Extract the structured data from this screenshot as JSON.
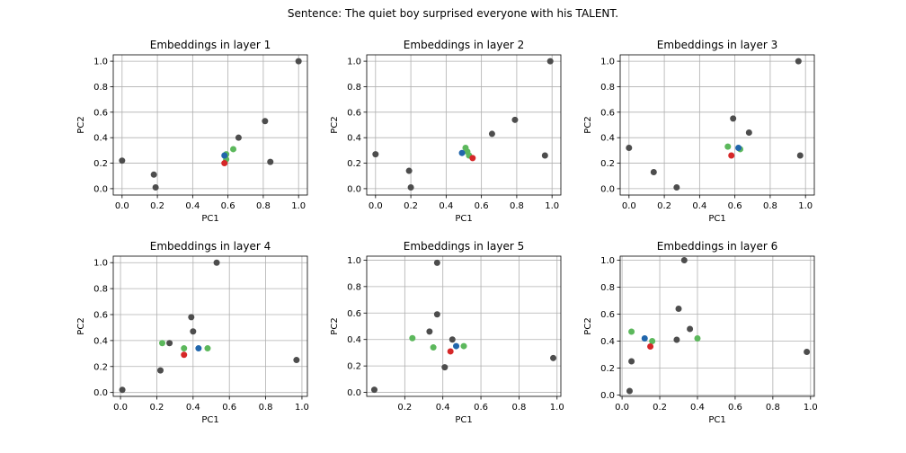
{
  "suptitle": "Sentence: The quiet boy surprised everyone with his TALENT.",
  "colors": {
    "other": "#4d4d4d",
    "green": "#5cb85c",
    "blue": "#2166ac",
    "red": "#d62728",
    "grid": "#b0b0b0"
  },
  "chart_data": [
    {
      "type": "scatter",
      "title": "Embeddings in layer 1",
      "xlabel": "PC1",
      "ylabel": "PC2",
      "xlim": [
        -0.05,
        1.05
      ],
      "ylim": [
        -0.05,
        1.05
      ],
      "xticks": [
        0.0,
        0.2,
        0.4,
        0.6,
        0.8,
        1.0
      ],
      "yticks": [
        0.0,
        0.2,
        0.4,
        0.6,
        0.8,
        1.0
      ],
      "xtick_labels": [
        "0.0",
        "0.2",
        "0.4",
        "0.6",
        "0.8",
        "1.0"
      ],
      "ytick_labels": [
        "0.0",
        "0.2",
        "0.4",
        "0.6",
        "0.8",
        "1.0"
      ],
      "grid": true,
      "points": [
        {
          "x": 0.0,
          "y": 0.22,
          "c": "other"
        },
        {
          "x": 0.18,
          "y": 0.11,
          "c": "other"
        },
        {
          "x": 0.19,
          "y": 0.01,
          "c": "other"
        },
        {
          "x": 0.66,
          "y": 0.4,
          "c": "other"
        },
        {
          "x": 0.81,
          "y": 0.53,
          "c": "other"
        },
        {
          "x": 0.84,
          "y": 0.21,
          "c": "other"
        },
        {
          "x": 1.0,
          "y": 1.0,
          "c": "other"
        },
        {
          "x": 0.59,
          "y": 0.23,
          "c": "green"
        },
        {
          "x": 0.59,
          "y": 0.27,
          "c": "green"
        },
        {
          "x": 0.63,
          "y": 0.31,
          "c": "green"
        },
        {
          "x": 0.58,
          "y": 0.26,
          "c": "blue"
        },
        {
          "x": 0.58,
          "y": 0.2,
          "c": "red"
        }
      ]
    },
    {
      "type": "scatter",
      "title": "Embeddings in layer 2",
      "xlabel": "PC1",
      "ylabel": "PC2",
      "xlim": [
        -0.05,
        1.05
      ],
      "ylim": [
        -0.05,
        1.05
      ],
      "xticks": [
        0.0,
        0.2,
        0.4,
        0.6,
        0.8,
        1.0
      ],
      "yticks": [
        0.0,
        0.2,
        0.4,
        0.6,
        0.8,
        1.0
      ],
      "xtick_labels": [
        "0.0",
        "0.2",
        "0.4",
        "0.6",
        "0.8",
        "1.0"
      ],
      "ytick_labels": [
        "0.0",
        "0.2",
        "0.4",
        "0.6",
        "0.8",
        "1.0"
      ],
      "grid": true,
      "points": [
        {
          "x": 0.0,
          "y": 0.27,
          "c": "other"
        },
        {
          "x": 0.19,
          "y": 0.14,
          "c": "other"
        },
        {
          "x": 0.2,
          "y": 0.01,
          "c": "other"
        },
        {
          "x": 0.66,
          "y": 0.43,
          "c": "other"
        },
        {
          "x": 0.79,
          "y": 0.54,
          "c": "other"
        },
        {
          "x": 0.96,
          "y": 0.26,
          "c": "other"
        },
        {
          "x": 0.99,
          "y": 1.0,
          "c": "other"
        },
        {
          "x": 0.51,
          "y": 0.32,
          "c": "green"
        },
        {
          "x": 0.52,
          "y": 0.29,
          "c": "green"
        },
        {
          "x": 0.53,
          "y": 0.26,
          "c": "green"
        },
        {
          "x": 0.49,
          "y": 0.28,
          "c": "blue"
        },
        {
          "x": 0.55,
          "y": 0.24,
          "c": "red"
        }
      ]
    },
    {
      "type": "scatter",
      "title": "Embeddings in layer 3",
      "xlabel": "PC1",
      "ylabel": "PC2",
      "xlim": [
        -0.05,
        1.05
      ],
      "ylim": [
        -0.05,
        1.05
      ],
      "xticks": [
        0.0,
        0.2,
        0.4,
        0.6,
        0.8,
        1.0
      ],
      "yticks": [
        0.0,
        0.2,
        0.4,
        0.6,
        0.8,
        1.0
      ],
      "xtick_labels": [
        "0.0",
        "0.2",
        "0.4",
        "0.6",
        "0.8",
        "1.0"
      ],
      "ytick_labels": [
        "0.0",
        "0.2",
        "0.4",
        "0.6",
        "0.8",
        "1.0"
      ],
      "grid": true,
      "points": [
        {
          "x": 0.0,
          "y": 0.32,
          "c": "other"
        },
        {
          "x": 0.14,
          "y": 0.13,
          "c": "other"
        },
        {
          "x": 0.27,
          "y": 0.01,
          "c": "other"
        },
        {
          "x": 0.59,
          "y": 0.55,
          "c": "other"
        },
        {
          "x": 0.68,
          "y": 0.44,
          "c": "other"
        },
        {
          "x": 0.96,
          "y": 1.0,
          "c": "other"
        },
        {
          "x": 0.97,
          "y": 0.26,
          "c": "other"
        },
        {
          "x": 0.56,
          "y": 0.33,
          "c": "green"
        },
        {
          "x": 0.63,
          "y": 0.31,
          "c": "green"
        },
        {
          "x": 0.62,
          "y": 0.32,
          "c": "blue"
        },
        {
          "x": 0.58,
          "y": 0.26,
          "c": "red"
        }
      ]
    },
    {
      "type": "scatter",
      "title": "Embeddings in layer 4",
      "xlabel": "PC1",
      "ylabel": "PC2",
      "xlim": [
        -0.04,
        1.03
      ],
      "ylim": [
        -0.03,
        1.05
      ],
      "xticks": [
        0.0,
        0.2,
        0.4,
        0.6,
        0.8,
        1.0
      ],
      "yticks": [
        0.0,
        0.2,
        0.4,
        0.6,
        0.8,
        1.0
      ],
      "xtick_labels": [
        "0.0",
        "0.2",
        "0.4",
        "0.6",
        "0.8",
        "1.0"
      ],
      "ytick_labels": [
        "0.0",
        "0.2",
        "0.4",
        "0.6",
        "0.8",
        "1.0"
      ],
      "grid": true,
      "points": [
        {
          "x": 0.01,
          "y": 0.02,
          "c": "other"
        },
        {
          "x": 0.22,
          "y": 0.17,
          "c": "other"
        },
        {
          "x": 0.27,
          "y": 0.38,
          "c": "other"
        },
        {
          "x": 0.39,
          "y": 0.58,
          "c": "other"
        },
        {
          "x": 0.4,
          "y": 0.47,
          "c": "other"
        },
        {
          "x": 0.53,
          "y": 1.0,
          "c": "other"
        },
        {
          "x": 0.97,
          "y": 0.25,
          "c": "other"
        },
        {
          "x": 0.23,
          "y": 0.38,
          "c": "green"
        },
        {
          "x": 0.35,
          "y": 0.34,
          "c": "green"
        },
        {
          "x": 0.48,
          "y": 0.34,
          "c": "green"
        },
        {
          "x": 0.43,
          "y": 0.34,
          "c": "blue"
        },
        {
          "x": 0.35,
          "y": 0.29,
          "c": "red"
        }
      ]
    },
    {
      "type": "scatter",
      "title": "Embeddings in layer 5",
      "xlabel": "PC1",
      "ylabel": "PC2",
      "xlim": [
        0.0,
        1.02
      ],
      "ylim": [
        -0.03,
        1.03
      ],
      "xticks": [
        0.2,
        0.4,
        0.6,
        0.8,
        1.0
      ],
      "yticks": [
        0.0,
        0.2,
        0.4,
        0.6,
        0.8,
        1.0
      ],
      "xtick_labels": [
        "0.2",
        "0.4",
        "0.6",
        "0.8",
        "1.0"
      ],
      "ytick_labels": [
        "0.0",
        "0.2",
        "0.4",
        "0.6",
        "0.8",
        "1.0"
      ],
      "grid": true,
      "points": [
        {
          "x": 0.04,
          "y": 0.02,
          "c": "other"
        },
        {
          "x": 0.33,
          "y": 0.46,
          "c": "other"
        },
        {
          "x": 0.37,
          "y": 0.98,
          "c": "other"
        },
        {
          "x": 0.37,
          "y": 0.59,
          "c": "other"
        },
        {
          "x": 0.41,
          "y": 0.19,
          "c": "other"
        },
        {
          "x": 0.45,
          "y": 0.4,
          "c": "other"
        },
        {
          "x": 0.98,
          "y": 0.26,
          "c": "other"
        },
        {
          "x": 0.24,
          "y": 0.41,
          "c": "green"
        },
        {
          "x": 0.35,
          "y": 0.34,
          "c": "green"
        },
        {
          "x": 0.51,
          "y": 0.35,
          "c": "green"
        },
        {
          "x": 0.47,
          "y": 0.35,
          "c": "blue"
        },
        {
          "x": 0.44,
          "y": 0.31,
          "c": "red"
        }
      ]
    },
    {
      "type": "scatter",
      "title": "Embeddings in layer 6",
      "xlabel": "PC1",
      "ylabel": "PC2",
      "xlim": [
        -0.01,
        1.02
      ],
      "ylim": [
        -0.01,
        1.03
      ],
      "xticks": [
        0.0,
        0.2,
        0.4,
        0.6,
        0.8,
        1.0
      ],
      "yticks": [
        0.0,
        0.2,
        0.4,
        0.6,
        0.8,
        1.0
      ],
      "xtick_labels": [
        "0.0",
        "0.2",
        "0.4",
        "0.6",
        "0.8",
        "1.0"
      ],
      "ytick_labels": [
        "0.0",
        "0.2",
        "0.4",
        "0.6",
        "0.8",
        "1.0"
      ],
      "grid": true,
      "points": [
        {
          "x": 0.04,
          "y": 0.03,
          "c": "other"
        },
        {
          "x": 0.05,
          "y": 0.25,
          "c": "other"
        },
        {
          "x": 0.29,
          "y": 0.41,
          "c": "other"
        },
        {
          "x": 0.3,
          "y": 0.64,
          "c": "other"
        },
        {
          "x": 0.33,
          "y": 1.0,
          "c": "other"
        },
        {
          "x": 0.36,
          "y": 0.49,
          "c": "other"
        },
        {
          "x": 0.98,
          "y": 0.32,
          "c": "other"
        },
        {
          "x": 0.05,
          "y": 0.47,
          "c": "green"
        },
        {
          "x": 0.16,
          "y": 0.4,
          "c": "green"
        },
        {
          "x": 0.4,
          "y": 0.42,
          "c": "green"
        },
        {
          "x": 0.12,
          "y": 0.42,
          "c": "blue"
        },
        {
          "x": 0.15,
          "y": 0.36,
          "c": "red"
        }
      ]
    }
  ]
}
